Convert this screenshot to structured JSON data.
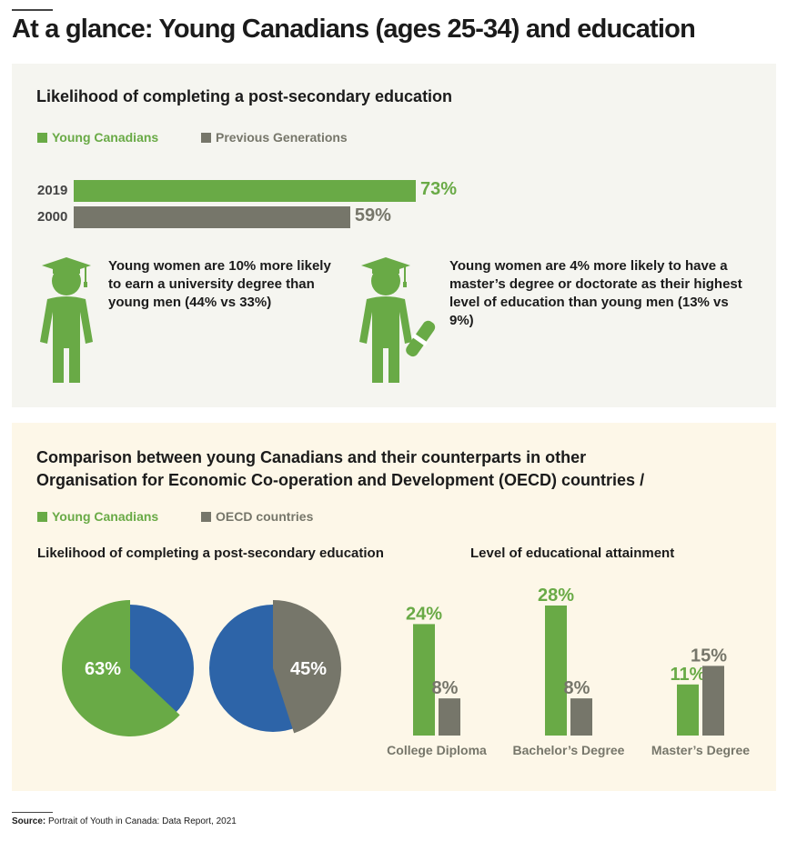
{
  "title": "At a glance: Young Canadians (ages 25-34) and education",
  "colors": {
    "green": "#69aa46",
    "gray": "#76766a",
    "blue": "#2d64a8"
  },
  "section1": {
    "title": "Likelihood of completing a post-secondary education",
    "legend": [
      "Young Canadians",
      "Previous Generations"
    ],
    "facts": [
      "Young women are 10% more likely to earn a university degree than young men (44% vs 33%)",
      "Young women are 4% more likely to have a master’s degree or doctorate as their highest level of education than young men (13% vs 9%)"
    ],
    "icons": [
      "graduate-icon",
      "graduate-with-diploma-icon"
    ]
  },
  "section2": {
    "title": "Comparison between young Canadians and their counterparts in other Organisation for Economic Co-operation and Development (OECD) countries /",
    "legend": [
      "Young Canadians",
      "OECD countries"
    ],
    "pie_title": "Likelihood of completing a post-secondary education",
    "bars_title": "Level of educational attainment"
  },
  "chart_data": [
    {
      "type": "bar",
      "orientation": "horizontal",
      "title": "Likelihood of completing a post-secondary education",
      "categories": [
        "2019",
        "2000"
      ],
      "values": [
        73,
        59
      ],
      "labels": [
        "73%",
        "59%"
      ],
      "series": [
        "Young Canadians",
        "Previous Generations"
      ]
    },
    {
      "type": "pie",
      "title": "Likelihood of completing a post-secondary education",
      "series": "Young Canadians",
      "value": 63,
      "label": "63%"
    },
    {
      "type": "pie",
      "title": "Likelihood of completing a post-secondary education",
      "series": "OECD countries",
      "value": 45,
      "label": "45%"
    },
    {
      "type": "bar",
      "title": "Level of educational attainment",
      "categories": [
        "College Diploma",
        "Bachelor’s Degree",
        "Master’s Degree"
      ],
      "series": [
        {
          "name": "Young Canadians",
          "values": [
            24,
            28,
            11
          ],
          "labels": [
            "24%",
            "28%",
            "11%"
          ]
        },
        {
          "name": "OECD countries",
          "values": [
            8,
            8,
            15
          ],
          "labels": [
            "8%",
            "8%",
            "15%"
          ]
        }
      ]
    }
  ],
  "source": {
    "label": "Source:",
    "text": "Portrait of Youth in Canada: Data Report, 2021"
  }
}
